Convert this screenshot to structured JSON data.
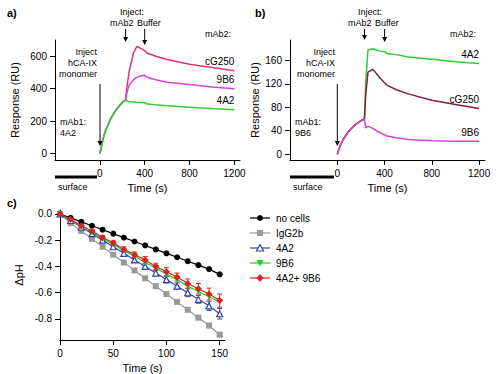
{
  "chart_data": [
    {
      "type": "line",
      "title": "a)",
      "xlabel": "Time (s)",
      "ylabel": "Response (RU)",
      "xlim": [
        -400,
        1250
      ],
      "xticks": [
        0,
        400,
        800,
        1200
      ],
      "ylim": [
        -40,
        700
      ],
      "yticks": [
        0,
        200,
        400,
        600
      ],
      "grid": false,
      "annotations": [
        "Inject\nhCA-IX\nmonomer",
        "Inject:",
        "mAb2",
        "Buffer",
        "mAb2:",
        "mAb1:\n4A2",
        "surface"
      ],
      "x": [
        0,
        25,
        50,
        100,
        150,
        200,
        230,
        240,
        260,
        300,
        330,
        360,
        400,
        420,
        500,
        600,
        800,
        1000,
        1200
      ],
      "series": [
        {
          "name": "cG250",
          "color": "#e8336a",
          "values": [
            0,
            80,
            140,
            220,
            275,
            315,
            330,
            400,
            500,
            620,
            660,
            650,
            635,
            620,
            600,
            580,
            550,
            530,
            510
          ]
        },
        {
          "name": "9B6",
          "color": "#d444d4",
          "values": [
            0,
            80,
            140,
            220,
            275,
            315,
            330,
            370,
            420,
            455,
            470,
            478,
            482,
            470,
            455,
            440,
            425,
            410,
            400
          ]
        },
        {
          "name": "4A2",
          "color": "#33cc33",
          "values": [
            0,
            80,
            140,
            220,
            275,
            315,
            330,
            325,
            320,
            318,
            316,
            315,
            313,
            305,
            300,
            295,
            285,
            277,
            270
          ]
        }
      ]
    },
    {
      "type": "line",
      "title": "b)",
      "xlabel": "Time (s)",
      "ylabel": "Response (RU)",
      "xlim": [
        -400,
        1250
      ],
      "xticks": [
        0,
        400,
        800,
        1200
      ],
      "ylim": [
        -10,
        195
      ],
      "yticks": [
        0,
        40,
        80,
        120,
        160
      ],
      "grid": false,
      "annotations": [
        "Inject\nhCA-IX\nmonomer",
        "Inject:",
        "mAb2",
        "Buffer",
        "mAb2:",
        "mAb1:\n9B6",
        "surface"
      ],
      "x": [
        0,
        25,
        50,
        100,
        150,
        200,
        230,
        240,
        260,
        300,
        330,
        360,
        400,
        420,
        500,
        600,
        800,
        1000,
        1200
      ],
      "series": [
        {
          "name": "4A2",
          "color": "#33cc33",
          "values": [
            0,
            15,
            25,
            40,
            50,
            57,
            60,
            120,
            178,
            180,
            178,
            176,
            175,
            172,
            170,
            166,
            162,
            158,
            155
          ]
        },
        {
          "name": "cG250",
          "color": "#8b1a3a",
          "values": [
            0,
            15,
            25,
            40,
            50,
            57,
            60,
            100,
            140,
            145,
            138,
            130,
            122,
            118,
            110,
            103,
            92,
            85,
            78
          ]
        },
        {
          "name": "9B6",
          "color": "#d444d4",
          "values": [
            0,
            15,
            25,
            40,
            50,
            57,
            60,
            45,
            48,
            44,
            40,
            37,
            33,
            31,
            28,
            25,
            23,
            22,
            22
          ]
        }
      ]
    },
    {
      "type": "line",
      "title": "c)",
      "xlabel": "Time (s)",
      "ylabel": "ΔpH",
      "xlim": [
        0,
        155
      ],
      "xticks": [
        0,
        50,
        100,
        150
      ],
      "ylim": [
        -0.96,
        0.03
      ],
      "yticks": [
        {
          "value": 0,
          "label": "0.0"
        },
        -0.2,
        -0.4,
        -0.6,
        -0.8
      ],
      "grid": false,
      "legend": "right",
      "x": [
        0,
        10,
        20,
        30,
        40,
        50,
        60,
        70,
        80,
        90,
        100,
        110,
        120,
        130,
        140,
        150
      ],
      "series": [
        {
          "name": "no cells",
          "color": "#000000",
          "marker": "circle",
          "values": [
            0,
            -0.03,
            -0.06,
            -0.09,
            -0.12,
            -0.15,
            -0.18,
            -0.21,
            -0.24,
            -0.27,
            -0.3,
            -0.33,
            -0.36,
            -0.39,
            -0.42,
            -0.46
          ]
        },
        {
          "name": "IgG2b",
          "color": "#999999",
          "marker": "square",
          "values": [
            0,
            -0.07,
            -0.13,
            -0.19,
            -0.25,
            -0.31,
            -0.37,
            -0.43,
            -0.49,
            -0.55,
            -0.61,
            -0.67,
            -0.73,
            -0.79,
            -0.85,
            -0.92
          ]
        },
        {
          "name": "4A2",
          "color": "#3344aa",
          "marker": "triangle-open",
          "values": [
            0,
            -0.05,
            -0.1,
            -0.15,
            -0.2,
            -0.25,
            -0.3,
            -0.35,
            -0.4,
            -0.45,
            -0.5,
            -0.55,
            -0.6,
            -0.65,
            -0.7,
            -0.76
          ],
          "errors": [
            0,
            0.005,
            0.005,
            0.01,
            0.01,
            0.015,
            0.015,
            0.02,
            0.02,
            0.02,
            0.025,
            0.025,
            0.03,
            0.03,
            0.035,
            0.04
          ]
        },
        {
          "name": "9B6",
          "color": "#22cc22",
          "marker": "triangle-down",
          "values": [
            0,
            -0.05,
            -0.1,
            -0.14,
            -0.19,
            -0.23,
            -0.28,
            -0.32,
            -0.37,
            -0.41,
            -0.46,
            -0.5,
            -0.55,
            -0.59,
            -0.63,
            -0.67
          ]
        },
        {
          "name": "4A2+ 9B6",
          "color": "#dd2222",
          "marker": "diamond",
          "values": [
            0,
            -0.04,
            -0.09,
            -0.13,
            -0.18,
            -0.22,
            -0.27,
            -0.31,
            -0.35,
            -0.4,
            -0.44,
            -0.48,
            -0.53,
            -0.57,
            -0.61,
            -0.66
          ],
          "errors": [
            0,
            0.005,
            0.01,
            0.01,
            0.015,
            0.015,
            0.02,
            0.02,
            0.025,
            0.025,
            0.03,
            0.03,
            0.035,
            0.04,
            0.045,
            0.05
          ]
        }
      ]
    }
  ]
}
